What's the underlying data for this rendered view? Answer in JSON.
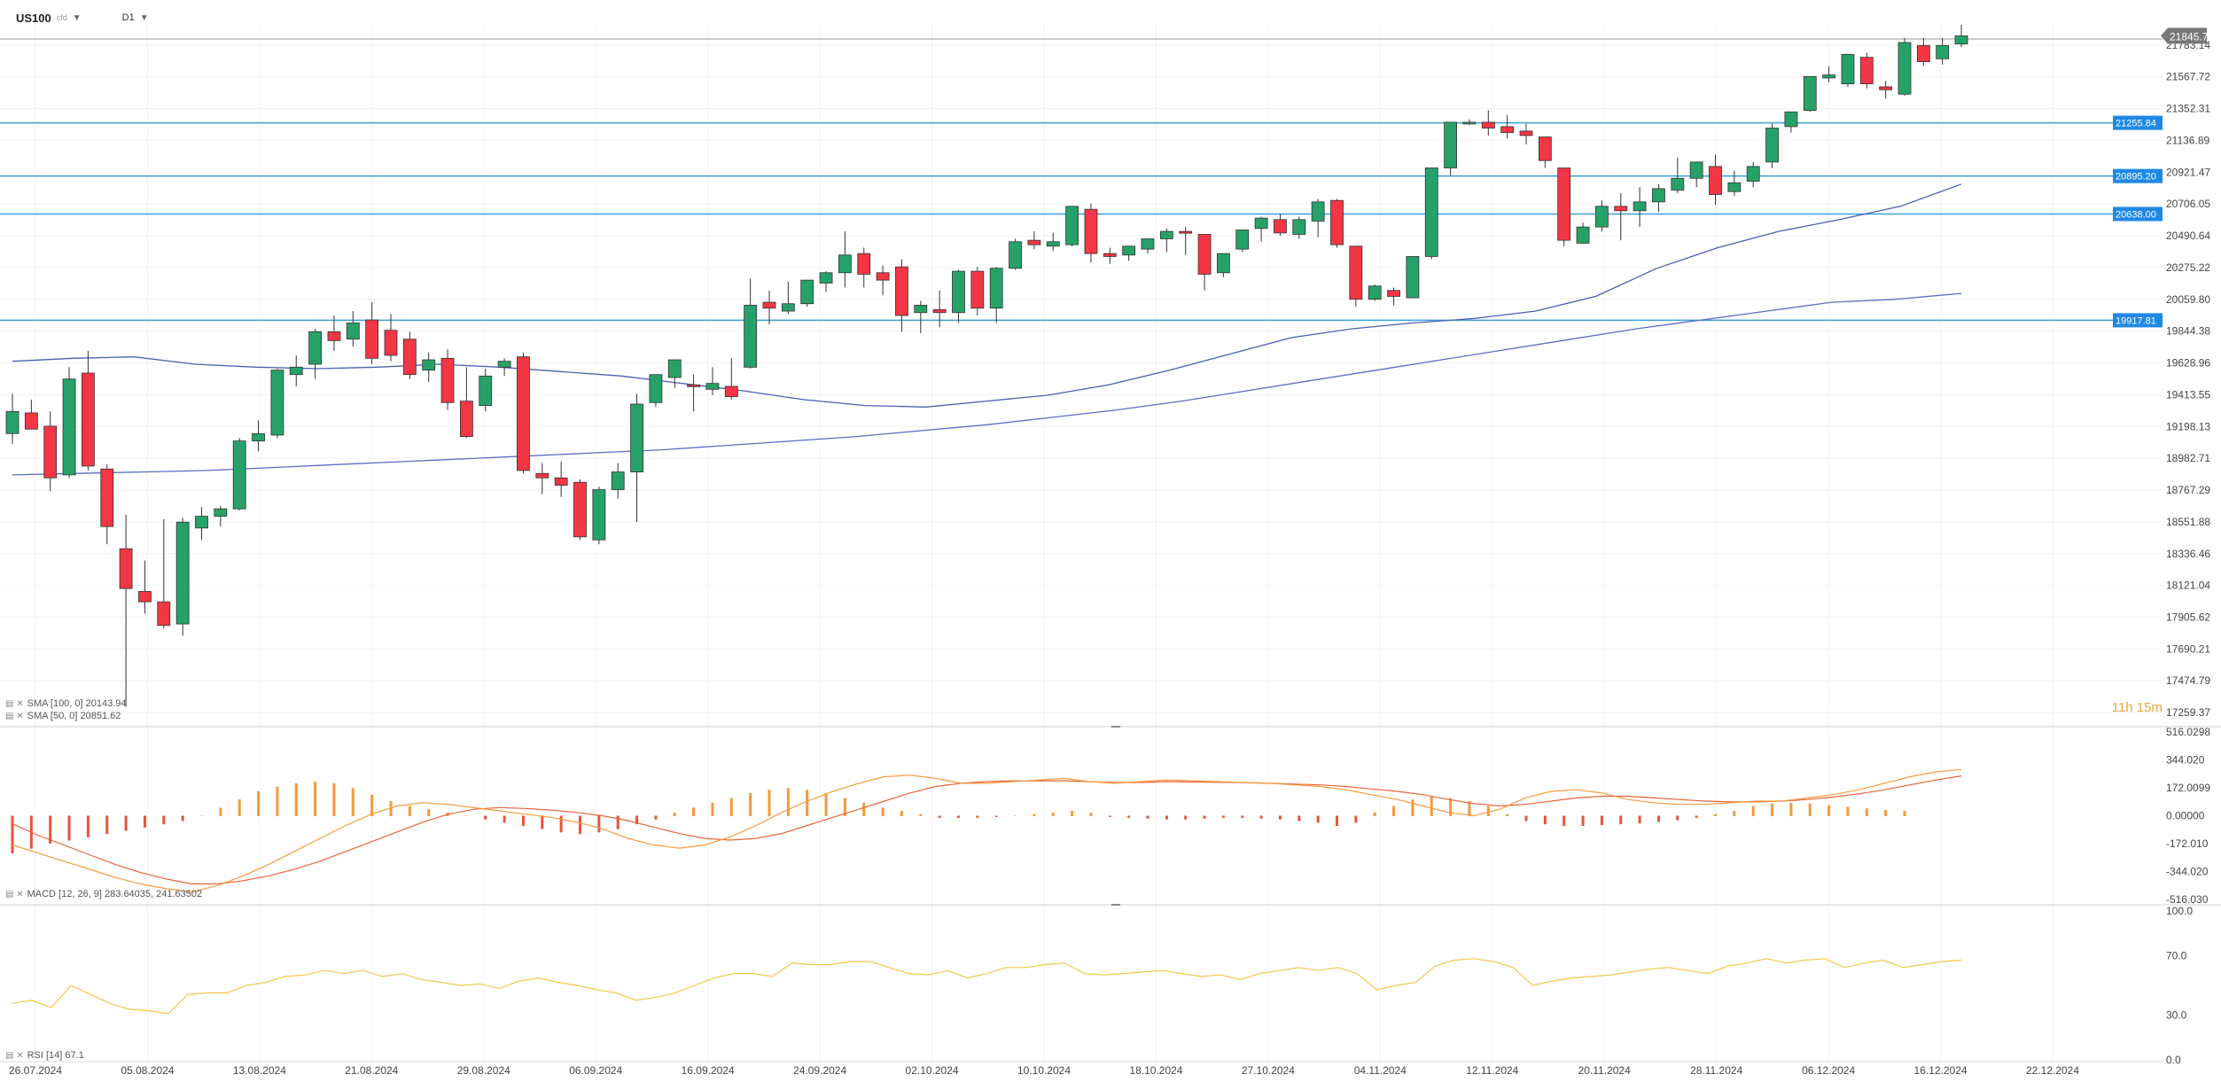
{
  "header": {
    "symbol": "US100",
    "symbol_sub": "cfd",
    "timeframe": "D1"
  },
  "colors": {
    "up": "#26a269",
    "down": "#f23645",
    "sma100": "#5b6cc4",
    "sma50": "#4a5fb0",
    "hline": "#3aa0d8",
    "macd_line": "#f59b3c",
    "signal_line": "#e8643a",
    "rsi": "#f4c64a"
  },
  "countdown": "11h 15m",
  "chart_data": [
    {
      "type": "candlestick",
      "ylim": [
        17200,
        21920
      ],
      "ticks": [
        "21783.14",
        "21567.72",
        "21352.31",
        "21136.89",
        "20921.47",
        "20706.05",
        "20490.64",
        "20275.22",
        "20059.80",
        "19844.38",
        "19628.96",
        "19413.55",
        "19198.13",
        "18982.71",
        "18767.29",
        "18551.88",
        "18336.46",
        "18121.04",
        "17905.62",
        "17690.21",
        "17474.79",
        "17259.37"
      ],
      "x_labels": [
        "26.07.2024",
        "05.08.2024",
        "13.08.2024",
        "21.08.2024",
        "29.08.2024",
        "06.09.2024",
        "16.09.2024",
        "24.09.2024",
        "02.10.2024",
        "10.10.2024",
        "18.10.2024",
        "27.10.2024",
        "04.11.2024",
        "12.11.2024",
        "20.11.2024",
        "28.11.2024",
        "06.12.2024",
        "16.12.2024",
        "22.12.2024"
      ],
      "last_price": "21845.72",
      "levels": [
        {
          "value": 21255.84,
          "label": "21255.84"
        },
        {
          "value": 20895.2,
          "label": "20895.20"
        },
        {
          "value": 20638.0,
          "label": "20638.00"
        },
        {
          "value": 19917.81,
          "label": "19917.81"
        }
      ],
      "candles": [
        [
          19150,
          19420,
          19300,
          19080
        ],
        [
          19290,
          19380,
          19180,
          19210
        ],
        [
          19200,
          19300,
          18850,
          18760
        ],
        [
          18870,
          19600,
          19520,
          18850
        ],
        [
          19560,
          19710,
          18930,
          18900
        ],
        [
          18910,
          18940,
          18520,
          18400
        ],
        [
          18370,
          18600,
          18100,
          17300
        ],
        [
          18080,
          18290,
          18010,
          17930
        ],
        [
          18010,
          18570,
          17850,
          17830
        ],
        [
          17860,
          18580,
          18550,
          17780
        ],
        [
          18510,
          18650,
          18590,
          18430
        ],
        [
          18590,
          18660,
          18640,
          18520
        ],
        [
          18640,
          19120,
          19100,
          18630
        ],
        [
          19100,
          19240,
          19150,
          19030
        ],
        [
          19140,
          19590,
          19580,
          19120
        ],
        [
          19550,
          19680,
          19600,
          19470
        ],
        [
          19620,
          19860,
          19840,
          19520
        ],
        [
          19840,
          19950,
          19780,
          19710
        ],
        [
          19790,
          19980,
          19900,
          19740
        ],
        [
          19920,
          20040,
          19660,
          19620
        ],
        [
          19850,
          19960,
          19680,
          19640
        ],
        [
          19790,
          19840,
          19550,
          19520
        ],
        [
          19580,
          19700,
          19650,
          19500
        ],
        [
          19660,
          19720,
          19360,
          19310
        ],
        [
          19370,
          19600,
          19130,
          19120
        ],
        [
          19340,
          19590,
          19540,
          19300
        ],
        [
          19600,
          19660,
          19640,
          19540
        ],
        [
          19670,
          19700,
          18900,
          18880
        ],
        [
          18880,
          18950,
          18850,
          18740
        ],
        [
          18850,
          18960,
          18800,
          18720
        ],
        [
          18820,
          18840,
          18450,
          18430
        ],
        [
          18430,
          18790,
          18770,
          18400
        ],
        [
          18770,
          18950,
          18890,
          18710
        ],
        [
          18890,
          19420,
          19350,
          18550
        ],
        [
          19360,
          19520,
          19550,
          19330
        ],
        [
          19530,
          19650,
          19650,
          19460
        ],
        [
          19480,
          19550,
          19470,
          19300
        ],
        [
          19450,
          19600,
          19490,
          19410
        ],
        [
          19470,
          19660,
          19400,
          19380
        ],
        [
          19600,
          20200,
          20020,
          19590
        ],
        [
          20040,
          20120,
          20000,
          19890
        ],
        [
          19980,
          20180,
          20030,
          19960
        ],
        [
          20030,
          20190,
          20190,
          20010
        ],
        [
          20170,
          20250,
          20240,
          20110
        ],
        [
          20240,
          20520,
          20360,
          20140
        ],
        [
          20370,
          20410,
          20230,
          20140
        ],
        [
          20240,
          20290,
          20190,
          20090
        ],
        [
          20280,
          20330,
          19950,
          19840
        ],
        [
          19970,
          20050,
          20020,
          19830
        ],
        [
          19990,
          20120,
          19970,
          19870
        ],
        [
          19970,
          20260,
          20250,
          19900
        ],
        [
          20250,
          20280,
          20000,
          19950
        ],
        [
          20000,
          20280,
          20270,
          19900
        ],
        [
          20270,
          20470,
          20450,
          20260
        ],
        [
          20460,
          20520,
          20430,
          20400
        ],
        [
          20420,
          20510,
          20450,
          20390
        ],
        [
          20430,
          20670,
          20690,
          20420
        ],
        [
          20670,
          20710,
          20370,
          20310
        ],
        [
          20370,
          20410,
          20350,
          20300
        ],
        [
          20360,
          20400,
          20420,
          20320
        ],
        [
          20400,
          20470,
          20470,
          20370
        ],
        [
          20470,
          20540,
          20520,
          20380
        ],
        [
          20520,
          20550,
          20510,
          20360
        ],
        [
          20500,
          20480,
          20230,
          20120
        ],
        [
          20240,
          20360,
          20370,
          20210
        ],
        [
          20400,
          20530,
          20530,
          20380
        ],
        [
          20540,
          20620,
          20610,
          20450
        ],
        [
          20600,
          20640,
          20510,
          20490
        ],
        [
          20500,
          20620,
          20600,
          20470
        ],
        [
          20590,
          20740,
          20720,
          20480
        ],
        [
          20730,
          20740,
          20430,
          20410
        ],
        [
          20420,
          20420,
          20060,
          20010
        ],
        [
          20060,
          20160,
          20150,
          20050
        ],
        [
          20120,
          20140,
          20080,
          20020
        ],
        [
          20070,
          20340,
          20350,
          20070
        ],
        [
          20350,
          20930,
          20950,
          20330
        ],
        [
          20950,
          21260,
          21260,
          20900
        ],
        [
          21250,
          21280,
          21260,
          21240
        ],
        [
          21260,
          21340,
          21220,
          21170
        ],
        [
          21230,
          21310,
          21190,
          21150
        ],
        [
          21200,
          21250,
          21170,
          21110
        ],
        [
          21160,
          21150,
          21000,
          20950
        ],
        [
          20950,
          20800,
          20460,
          20420
        ],
        [
          20440,
          20580,
          20550,
          20460
        ],
        [
          20550,
          20730,
          20690,
          20520
        ],
        [
          20690,
          20780,
          20660,
          20460
        ],
        [
          20660,
          20820,
          20720,
          20550
        ],
        [
          20720,
          20840,
          20810,
          20650
        ],
        [
          20800,
          21020,
          20880,
          20780
        ],
        [
          20880,
          20980,
          20990,
          20820
        ],
        [
          20960,
          21040,
          20770,
          20700
        ],
        [
          20790,
          20930,
          20850,
          20760
        ],
        [
          20860,
          20990,
          20960,
          20820
        ],
        [
          20990,
          21250,
          21220,
          20950
        ],
        [
          21230,
          21320,
          21330,
          21190
        ],
        [
          21340,
          21570,
          21570,
          21330
        ],
        [
          21560,
          21640,
          21580,
          21530
        ],
        [
          21520,
          21710,
          21720,
          21500
        ],
        [
          21700,
          21730,
          21520,
          21490
        ],
        [
          21500,
          21540,
          21480,
          21420
        ],
        [
          21450,
          21830,
          21800,
          21440
        ],
        [
          21780,
          21830,
          21670,
          21640
        ],
        [
          21690,
          21830,
          21780,
          21650
        ],
        [
          21790,
          21920,
          21845,
          21770
        ]
      ],
      "sma_100": [
        18870,
        18880,
        18890,
        18900,
        18920,
        18940,
        18960,
        18980,
        19000,
        19020,
        19040,
        19070,
        19100,
        19130,
        19170,
        19210,
        19260,
        19310,
        19370,
        19440,
        19510,
        19580,
        19650,
        19720,
        19790,
        19860,
        19920,
        19980,
        20040,
        20060,
        20100
      ],
      "sma_50": [
        19640,
        19660,
        19670,
        19620,
        19600,
        19590,
        19600,
        19620,
        19600,
        19570,
        19540,
        19490,
        19440,
        19380,
        19340,
        19330,
        19370,
        19410,
        19480,
        19580,
        19690,
        19800,
        19860,
        19900,
        19930,
        19980,
        20080,
        20270,
        20410,
        20520,
        20600,
        20690,
        20840
      ],
      "legend": [
        "SMA [100, 0] 20143.94",
        "SMA [50, 0] 20851.62"
      ]
    },
    {
      "type": "macd",
      "ylim": [
        -516.03,
        516.0298
      ],
      "ticks": [
        "516.0298",
        "344.020",
        "172.0099",
        "0.00000",
        "-172.010",
        "-344.020",
        "-516.030"
      ],
      "legend": "MACD [12, 26, 9] 283.64035, 241.63502",
      "histogram": [
        -230,
        -200,
        -170,
        -150,
        -130,
        -110,
        -90,
        -70,
        -50,
        -30,
        0,
        50,
        100,
        150,
        180,
        200,
        210,
        200,
        170,
        130,
        90,
        60,
        40,
        20,
        0,
        -20,
        -40,
        -60,
        -80,
        -100,
        -110,
        -100,
        -80,
        -50,
        -20,
        20,
        50,
        80,
        110,
        140,
        160,
        170,
        160,
        140,
        110,
        80,
        50,
        30,
        10,
        -10,
        -10,
        -10,
        -5,
        0,
        10,
        20,
        30,
        20,
        -5,
        -10,
        -15,
        -20,
        -20,
        -15,
        -10,
        -10,
        -15,
        -20,
        -30,
        -40,
        -60,
        -40,
        20,
        60,
        100,
        120,
        110,
        90,
        60,
        10,
        -30,
        -50,
        -60,
        -60,
        -55,
        -50,
        -45,
        -35,
        -25,
        -10,
        10,
        30,
        60,
        75,
        80,
        75,
        65,
        55,
        45,
        35,
        30
      ],
      "macd": [
        -180,
        -230,
        -280,
        -330,
        -380,
        -420,
        -450,
        -470,
        -430,
        -370,
        -300,
        -220,
        -140,
        -60,
        10,
        60,
        80,
        70,
        50,
        30,
        10,
        -10,
        -40,
        -80,
        -140,
        -180,
        -200,
        -180,
        -130,
        -60,
        20,
        90,
        150,
        200,
        240,
        250,
        230,
        200,
        200,
        210,
        220,
        230,
        210,
        200,
        210,
        220,
        215,
        210,
        205,
        200,
        190,
        180,
        160,
        130,
        100,
        60,
        20,
        0,
        40,
        110,
        150,
        160,
        140,
        100,
        80,
        70,
        70,
        80,
        90,
        90,
        110,
        130,
        160,
        200,
        240,
        270,
        285
      ],
      "signal": [
        -50,
        -120,
        -180,
        -240,
        -300,
        -350,
        -390,
        -420,
        -420,
        -400,
        -370,
        -330,
        -280,
        -220,
        -160,
        -100,
        -40,
        10,
        40,
        50,
        45,
        35,
        20,
        0,
        -30,
        -70,
        -110,
        -140,
        -150,
        -140,
        -110,
        -60,
        -10,
        40,
        90,
        140,
        180,
        200,
        210,
        215,
        215,
        215,
        210,
        205,
        205,
        210,
        208,
        206,
        204,
        200,
        195,
        190,
        180,
        165,
        150,
        130,
        100,
        75,
        60,
        70,
        90,
        110,
        120,
        120,
        110,
        100,
        90,
        85,
        85,
        90,
        100,
        115,
        135,
        160,
        190,
        220,
        245
      ]
    },
    {
      "type": "rsi",
      "ylim": [
        0,
        100
      ],
      "ticks": [
        "100.0",
        "70.0",
        "30.0",
        "0.0"
      ],
      "legend": "RSI [14] 67.1",
      "values": [
        38,
        40,
        35,
        50,
        44,
        38,
        34,
        33,
        31,
        44,
        45,
        45,
        50,
        52,
        56,
        57,
        60,
        58,
        60,
        56,
        58,
        54,
        52,
        50,
        51,
        48,
        53,
        55,
        52,
        50,
        47,
        45,
        40,
        42,
        45,
        50,
        55,
        58,
        58,
        56,
        65,
        64,
        64,
        66,
        66,
        62,
        58,
        57,
        60,
        55,
        58,
        62,
        62,
        64,
        65,
        58,
        57,
        58,
        59,
        60,
        58,
        56,
        57,
        54,
        58,
        60,
        62,
        60,
        62,
        58,
        47,
        50,
        52,
        63,
        67,
        68,
        66,
        62,
        50,
        53,
        55,
        56,
        57,
        59,
        61,
        62,
        60,
        58,
        63,
        65,
        68,
        65,
        67,
        68,
        62,
        65,
        67,
        62,
        64,
        66,
        67
      ]
    }
  ]
}
